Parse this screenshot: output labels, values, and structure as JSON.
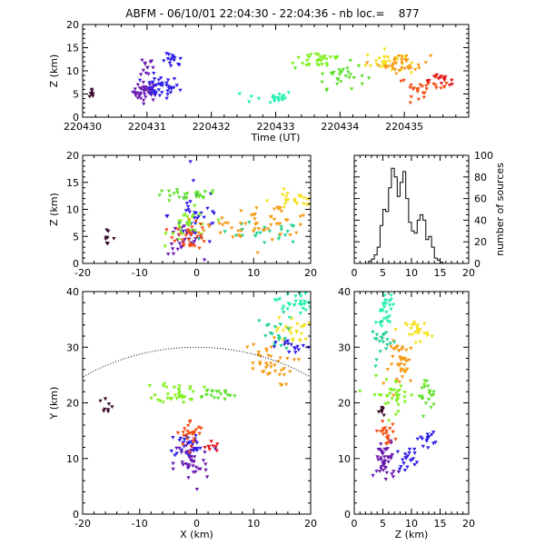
{
  "title": "ABFM - 06/10/01 22:04:30 - 22:04:36 - nb loc.=    877",
  "chart_data": [
    {
      "id": "time_height",
      "type": "scatter",
      "xlabel": "Time (UT)",
      "ylabel": "Z (km)",
      "xlim": [
        220430,
        220436
      ],
      "ylim": [
        0,
        20
      ],
      "x_tick_labels": [
        "220430",
        "220431",
        "220432",
        "220433",
        "220434",
        "220435"
      ],
      "y_tick_labels": [
        "0",
        "5",
        "10",
        "15",
        "20"
      ],
      "clusters": [
        {
          "x": 220430.15,
          "y": 4.9,
          "sx": 0.02,
          "sy": 0.8,
          "n": 8,
          "color": "#3a0a2c"
        },
        {
          "x": 220430.98,
          "y": 5.5,
          "sx": 0.1,
          "sy": 1.0,
          "n": 40,
          "color": "#6a19b0"
        },
        {
          "x": 220431.2,
          "y": 6.5,
          "sx": 0.15,
          "sy": 1.2,
          "n": 40,
          "color": "#2d1ee8"
        },
        {
          "x": 220431.4,
          "y": 12.0,
          "sx": 0.08,
          "sy": 0.8,
          "n": 15,
          "color": "#2d1ee8"
        },
        {
          "x": 220431.0,
          "y": 11.0,
          "sx": 0.05,
          "sy": 1.2,
          "n": 12,
          "color": "#6a19b0"
        },
        {
          "x": 220432.9,
          "y": 4.3,
          "sx": 0.2,
          "sy": 0.7,
          "n": 20,
          "color": "#20f0b0"
        },
        {
          "x": 220433.7,
          "y": 12.5,
          "sx": 0.2,
          "sy": 1.0,
          "n": 30,
          "color": "#7ef01c"
        },
        {
          "x": 220434.0,
          "y": 9.0,
          "sx": 0.2,
          "sy": 1.4,
          "n": 30,
          "color": "#5de02a"
        },
        {
          "x": 220434.7,
          "y": 12.0,
          "sx": 0.15,
          "sy": 1.2,
          "n": 30,
          "color": "#f5e01a"
        },
        {
          "x": 220435.0,
          "y": 11.5,
          "sx": 0.2,
          "sy": 1.0,
          "n": 35,
          "color": "#f59a14"
        },
        {
          "x": 220435.3,
          "y": 6.5,
          "sx": 0.2,
          "sy": 1.0,
          "n": 30,
          "color": "#f24e14"
        },
        {
          "x": 220435.6,
          "y": 8.0,
          "sx": 0.15,
          "sy": 0.6,
          "n": 15,
          "color": "#e41414"
        }
      ]
    },
    {
      "id": "x_height",
      "type": "scatter",
      "xlabel": "",
      "ylabel": "Z (km)",
      "xlim": [
        -20,
        20
      ],
      "ylim": [
        0,
        20
      ],
      "x_tick_labels": [
        "-20",
        "-10",
        "0",
        "10",
        "20"
      ],
      "y_tick_labels": [
        "0",
        "5",
        "10",
        "15",
        "20"
      ],
      "clusters": [
        {
          "x": -16,
          "y": 4.8,
          "sx": 0.8,
          "sy": 0.6,
          "n": 8,
          "color": "#3a0a2c"
        },
        {
          "x": -2,
          "y": 4.5,
          "sx": 1.5,
          "sy": 1.5,
          "n": 35,
          "color": "#6a19b0"
        },
        {
          "x": 0,
          "y": 9.0,
          "sx": 2.5,
          "sy": 3.0,
          "n": 35,
          "color": "#2d1ee8"
        },
        {
          "x": -2,
          "y": 12.5,
          "sx": 3.0,
          "sy": 0.6,
          "n": 25,
          "color": "#5de02a"
        },
        {
          "x": 11,
          "y": 5.5,
          "sx": 4.0,
          "sy": 1.0,
          "n": 25,
          "color": "#20d090"
        },
        {
          "x": -1,
          "y": 7.0,
          "sx": 2.0,
          "sy": 1.5,
          "n": 30,
          "color": "#7ef01c"
        },
        {
          "x": -1,
          "y": 5.0,
          "sx": 1.5,
          "sy": 1.2,
          "n": 30,
          "color": "#f24e14"
        },
        {
          "x": 13,
          "y": 8.0,
          "sx": 4.0,
          "sy": 1.5,
          "n": 35,
          "color": "#f59a14"
        },
        {
          "x": 17,
          "y": 11.5,
          "sx": 2.0,
          "sy": 1.0,
          "n": 25,
          "color": "#f5e01a"
        },
        {
          "x": 5,
          "y": 7.0,
          "sx": 4.0,
          "sy": 0.8,
          "n": 20,
          "color": "#f59a14"
        }
      ]
    },
    {
      "id": "histogram",
      "type": "bar",
      "xlabel": "",
      "ylabel": "number of sources",
      "xlim": [
        0,
        20
      ],
      "ylim": [
        0,
        100
      ],
      "x_tick_labels": [
        "0",
        "5",
        "10",
        "15",
        "20"
      ],
      "y_tick_labels": [
        "0",
        "20",
        "40",
        "60",
        "80",
        "100"
      ],
      "bin_width": 0.5,
      "bins_start": 0,
      "values": [
        0,
        0,
        0,
        0,
        0,
        2,
        4,
        8,
        15,
        35,
        50,
        48,
        70,
        88,
        80,
        62,
        75,
        85,
        60,
        38,
        30,
        28,
        40,
        45,
        40,
        22,
        25,
        15,
        5,
        3,
        1,
        0,
        0,
        0,
        0,
        0,
        0,
        0,
        0,
        0
      ]
    },
    {
      "id": "plan_view",
      "type": "scatter",
      "xlabel": "X (km)",
      "ylabel": "Y (km)",
      "xlim": [
        -20,
        20
      ],
      "ylim": [
        0,
        40
      ],
      "x_tick_labels": [
        "-20",
        "-10",
        "0",
        "10",
        "20"
      ],
      "y_tick_labels": [
        "0",
        "10",
        "20",
        "30",
        "40"
      ],
      "clusters": [
        {
          "x": -16,
          "y": 19.5,
          "sx": 0.9,
          "sy": 0.9,
          "n": 8,
          "color": "#3a0a2c"
        },
        {
          "x": -1,
          "y": 9.0,
          "sx": 1.5,
          "sy": 2.5,
          "n": 45,
          "color": "#6a19b0"
        },
        {
          "x": -1,
          "y": 12.5,
          "sx": 2.0,
          "sy": 1.2,
          "n": 30,
          "color": "#2d1ee8"
        },
        {
          "x": -1,
          "y": 14.5,
          "sx": 1.2,
          "sy": 1.2,
          "n": 25,
          "color": "#f24e14"
        },
        {
          "x": 2,
          "y": 12.0,
          "sx": 1.0,
          "sy": 0.6,
          "n": 10,
          "color": "#e41414"
        },
        {
          "x": -3,
          "y": 22.0,
          "sx": 2.0,
          "sy": 1.0,
          "n": 35,
          "color": "#7ef01c"
        },
        {
          "x": 3,
          "y": 21.5,
          "sx": 2.0,
          "sy": 0.6,
          "n": 20,
          "color": "#5de02a"
        },
        {
          "x": 12,
          "y": 27.0,
          "sx": 2.5,
          "sy": 2.0,
          "n": 40,
          "color": "#f59a14"
        },
        {
          "x": 17,
          "y": 33.0,
          "sx": 1.5,
          "sy": 1.2,
          "n": 25,
          "color": "#f5e01a"
        },
        {
          "x": 17,
          "y": 38.0,
          "sx": 1.5,
          "sy": 1.2,
          "n": 30,
          "color": "#20f0b0"
        },
        {
          "x": 14,
          "y": 32.0,
          "sx": 1.5,
          "sy": 2.0,
          "n": 20,
          "color": "#20d090"
        },
        {
          "x": 17,
          "y": 30.0,
          "sx": 1.5,
          "sy": 0.6,
          "n": 15,
          "color": "#2d1ee8"
        }
      ],
      "arc": {
        "center": [
          0,
          -10
        ],
        "radius": 40
      }
    },
    {
      "id": "z_y",
      "type": "scatter",
      "xlabel": "Z (km)",
      "ylabel": "",
      "xlim": [
        0,
        20
      ],
      "ylim": [
        0,
        40
      ],
      "x_tick_labels": [
        "0",
        "5",
        "10",
        "15",
        "20"
      ],
      "y_tick_labels": [
        "0",
        "10",
        "20",
        "30",
        "40"
      ],
      "clusters": [
        {
          "x": 5.5,
          "y": 9.5,
          "sx": 1.0,
          "sy": 2.0,
          "n": 45,
          "color": "#6a19b0"
        },
        {
          "x": 12.5,
          "y": 13.5,
          "sx": 0.8,
          "sy": 0.6,
          "n": 15,
          "color": "#2d1ee8"
        },
        {
          "x": 9.5,
          "y": 10.0,
          "sx": 1.0,
          "sy": 1.0,
          "n": 20,
          "color": "#2d1ee8"
        },
        {
          "x": 5.5,
          "y": 14.5,
          "sx": 0.8,
          "sy": 1.0,
          "n": 20,
          "color": "#f24e14"
        },
        {
          "x": 7.0,
          "y": 21.5,
          "sx": 2.0,
          "sy": 1.5,
          "n": 35,
          "color": "#7ef01c"
        },
        {
          "x": 12.5,
          "y": 21.5,
          "sx": 0.8,
          "sy": 1.5,
          "n": 20,
          "color": "#5de02a"
        },
        {
          "x": 8.5,
          "y": 27.0,
          "sx": 1.2,
          "sy": 2.0,
          "n": 40,
          "color": "#f59a14"
        },
        {
          "x": 11.0,
          "y": 33.0,
          "sx": 1.0,
          "sy": 1.0,
          "n": 25,
          "color": "#f5e01a"
        },
        {
          "x": 5.5,
          "y": 37.0,
          "sx": 0.8,
          "sy": 1.5,
          "n": 30,
          "color": "#20f0b0"
        },
        {
          "x": 5.0,
          "y": 31.0,
          "sx": 1.0,
          "sy": 1.5,
          "n": 20,
          "color": "#20d090"
        },
        {
          "x": 5.0,
          "y": 18.5,
          "sx": 0.3,
          "sy": 0.5,
          "n": 8,
          "color": "#3a0a2c"
        }
      ]
    }
  ]
}
